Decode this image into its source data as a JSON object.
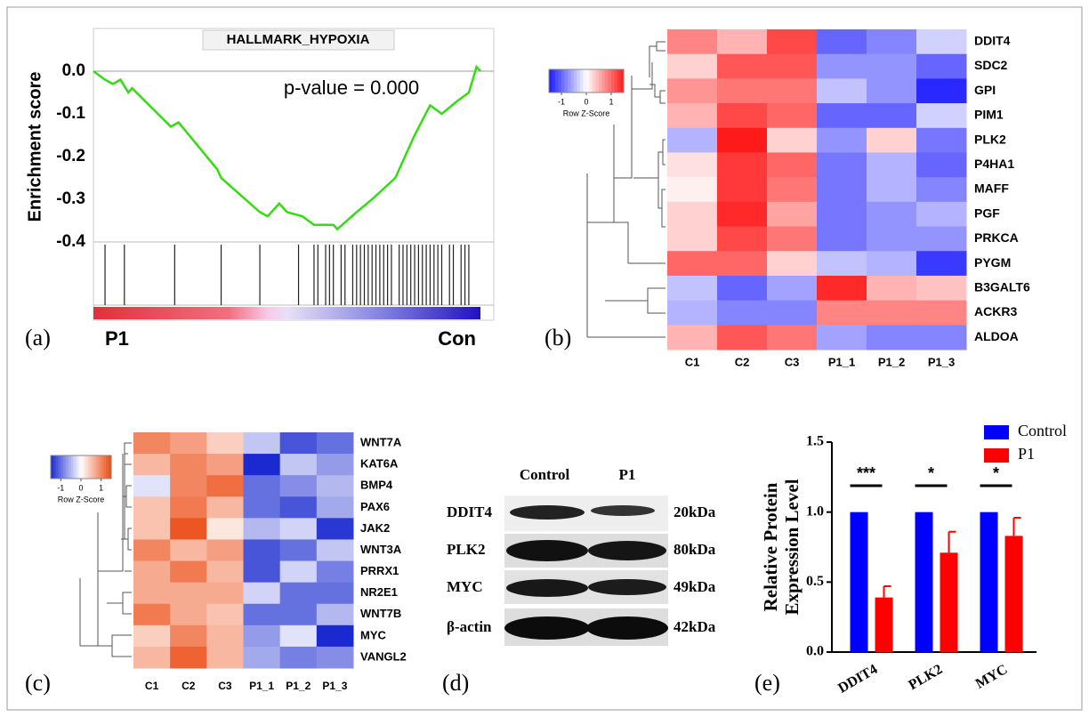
{
  "panel_labels": [
    "(a)",
    "(b)",
    "(c)",
    "(d)",
    "(e)"
  ],
  "chart_data": [
    {
      "type": "line",
      "title": "HALLMARK_HYPOXIA",
      "ylabel": "Enrichment score",
      "annotation": "p-value = 0.000",
      "phenotype_labels": [
        "P1",
        "Con"
      ],
      "color": "#33dd11",
      "x": [
        0,
        3,
        5,
        7,
        9,
        10,
        20,
        22,
        32,
        33,
        43,
        45,
        48,
        50,
        54,
        57,
        62,
        63,
        68,
        72,
        78,
        83,
        87,
        90,
        94,
        97,
        99,
        100
      ],
      "values": [
        0,
        -0.02,
        -0.03,
        -0.02,
        -0.05,
        -0.04,
        -0.13,
        -0.12,
        -0.23,
        -0.25,
        -0.33,
        -0.34,
        -0.31,
        -0.33,
        -0.34,
        -0.36,
        -0.36,
        -0.37,
        -0.33,
        -0.3,
        -0.25,
        -0.15,
        -0.08,
        -0.1,
        -0.07,
        -0.05,
        0.01,
        0
      ],
      "hits": [
        3,
        8,
        21,
        33,
        43,
        53,
        57,
        58,
        60,
        61,
        62,
        64,
        65,
        67,
        68,
        69,
        70,
        71,
        72,
        73,
        74,
        75,
        76,
        77,
        79,
        80,
        81,
        82,
        83,
        84,
        85,
        86,
        87,
        88,
        89,
        90,
        92,
        93,
        95,
        96,
        97
      ],
      "xlim": [
        0,
        100
      ],
      "ylim": [
        -0.4,
        0.1
      ],
      "yticks": [
        {
          "value": 0,
          "label": "0.0"
        },
        -0.1,
        -0.2,
        -0.3,
        -0.4
      ]
    },
    {
      "type": "heatmap",
      "categories": [
        "C1",
        "C2",
        "C3",
        "P1_1",
        "P1_2",
        "P1_3"
      ],
      "rows": [
        "DDIT4",
        "SDC2",
        "GPI",
        "PIM1",
        "PLK2",
        "P4HA1",
        "MAFF",
        "PGF",
        "PRKCA",
        "PYGM",
        "B3GALT6",
        "ACKR3",
        "ALDOA"
      ],
      "values": [
        [
          0.8,
          0.5,
          1.2,
          -1.0,
          -0.8,
          -0.3
        ],
        [
          0.3,
          1.1,
          1.1,
          -0.7,
          -0.7,
          -1.0
        ],
        [
          0.7,
          0.9,
          0.9,
          -0.4,
          -0.7,
          -1.4
        ],
        [
          0.5,
          1.2,
          1.0,
          -1.0,
          -1.0,
          -0.3
        ],
        [
          -0.5,
          1.5,
          0.3,
          -0.7,
          0.3,
          -0.9
        ],
        [
          0.2,
          1.3,
          1.0,
          -0.9,
          -0.5,
          -1.0
        ],
        [
          0.1,
          1.3,
          0.9,
          -0.9,
          -0.5,
          -0.8
        ],
        [
          0.3,
          1.4,
          0.6,
          -0.9,
          -0.7,
          -0.5
        ],
        [
          0.3,
          1.2,
          0.9,
          -0.9,
          -0.7,
          -0.7
        ],
        [
          1.0,
          1.0,
          0.3,
          -0.4,
          -0.5,
          -1.3
        ],
        [
          -0.4,
          -1.0,
          -0.6,
          1.4,
          0.5,
          0.4
        ],
        [
          -0.5,
          -0.8,
          -0.8,
          0.8,
          0.8,
          0.8
        ],
        [
          0.5,
          1.1,
          0.9,
          -0.6,
          -0.8,
          -0.8
        ]
      ],
      "legend_title": "Row Z-Score",
      "zlim": [
        -1.5,
        1.5
      ],
      "zticks": [
        -1,
        0,
        1
      ],
      "colors": [
        "#1a1aff",
        "#ffffff",
        "#ff1a1a"
      ]
    },
    {
      "type": "heatmap",
      "categories": [
        "C1",
        "C2",
        "C3",
        "P1_1",
        "P1_2",
        "P1_3"
      ],
      "rows": [
        "WNT7A",
        "KAT6A",
        "BMP4",
        "PAX6",
        "JAK2",
        "WNT3A",
        "PRRX1",
        "NR2E1",
        "WNT7B",
        "MYC",
        "VANGL2"
      ],
      "values": [
        [
          1.0,
          0.8,
          0.4,
          -0.4,
          -1.2,
          -1.0
        ],
        [
          0.6,
          1.0,
          0.8,
          -1.5,
          -0.4,
          -0.7
        ],
        [
          -0.2,
          1.0,
          1.2,
          -1.0,
          -0.8,
          -0.5
        ],
        [
          0.5,
          1.1,
          0.6,
          -1.0,
          -1.2,
          -0.6
        ],
        [
          0.5,
          1.4,
          0.2,
          -0.5,
          -0.3,
          -1.4
        ],
        [
          1.0,
          0.6,
          0.8,
          -1.2,
          -1.0,
          -0.4
        ],
        [
          0.7,
          1.1,
          0.6,
          -1.2,
          -0.3,
          -0.9
        ],
        [
          0.7,
          0.7,
          0.7,
          -0.3,
          -1.0,
          -1.0
        ],
        [
          1.1,
          0.7,
          0.5,
          -1.0,
          -1.0,
          -0.5
        ],
        [
          0.4,
          1.0,
          0.6,
          -0.7,
          -0.2,
          -1.5
        ],
        [
          0.6,
          1.3,
          0.6,
          -0.6,
          -0.9,
          -0.8
        ]
      ],
      "legend_title": "Row Z-Score",
      "zlim": [
        -1.5,
        1.5
      ],
      "zticks": [
        -1,
        0,
        1
      ],
      "colors": [
        "#1a2ad0",
        "#ffffff",
        "#ec4a12"
      ]
    },
    {
      "type": "bar",
      "ylabel": [
        "Relative Protein",
        "Expression Level"
      ],
      "categories": [
        "DDIT4",
        "PLK2",
        "MYC"
      ],
      "series": [
        {
          "name": "Control",
          "color": "#0000ff",
          "values": [
            1,
            1,
            1
          ]
        },
        {
          "name": "P1",
          "color": "#ff0000",
          "values": [
            0.39,
            0.71,
            0.83
          ],
          "errors": [
            0.08,
            0.15,
            0.13
          ]
        }
      ],
      "significance": [
        "***",
        "*",
        "*"
      ],
      "ylim": [
        0,
        1.5
      ],
      "yticks": [
        {
          "value": 0,
          "label": "0.0"
        },
        0.5,
        {
          "value": 1,
          "label": "1.0"
        },
        1.5
      ]
    }
  ],
  "blot": {
    "columns": [
      "Control",
      "P1"
    ],
    "rows": [
      {
        "protein": "DDIT4",
        "size": "20kDa"
      },
      {
        "protein": "PLK2",
        "size": "80kDa"
      },
      {
        "protein": "MYC",
        "size": "49kDa"
      },
      {
        "protein": "β-actin",
        "size": "42kDa"
      }
    ]
  }
}
